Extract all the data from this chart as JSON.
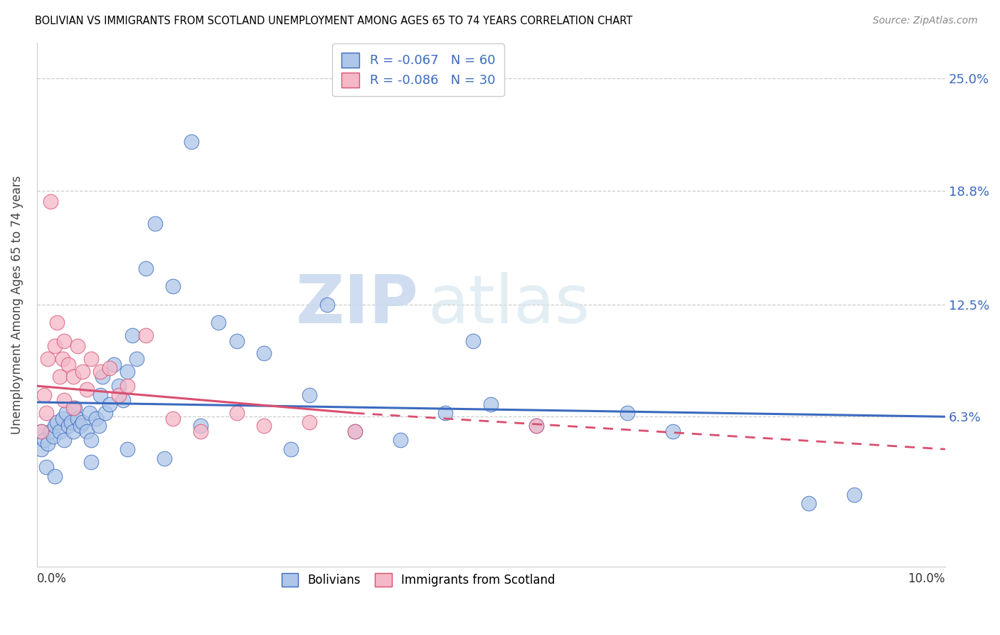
{
  "title": "BOLIVIAN VS IMMIGRANTS FROM SCOTLAND UNEMPLOYMENT AMONG AGES 65 TO 74 YEARS CORRELATION CHART",
  "source": "Source: ZipAtlas.com",
  "ylabel": "Unemployment Among Ages 65 to 74 years",
  "xlim": [
    0.0,
    10.0
  ],
  "ylim": [
    -2.0,
    27.0
  ],
  "yticks_labels": [
    "6.3%",
    "12.5%",
    "18.8%",
    "25.0%"
  ],
  "yticks_values": [
    6.3,
    12.5,
    18.8,
    25.0
  ],
  "blue_R": -0.067,
  "blue_N": 60,
  "pink_R": -0.086,
  "pink_N": 30,
  "blue_color": "#aec6e8",
  "pink_color": "#f4b8c8",
  "blue_line_color": "#3b6abf",
  "pink_line_color": "#d94f70",
  "watermark_zip": "ZIP",
  "watermark_atlas": "atlas",
  "blue_points_x": [
    0.05,
    0.05,
    0.08,
    0.12,
    0.15,
    0.18,
    0.2,
    0.22,
    0.25,
    0.28,
    0.3,
    0.32,
    0.35,
    0.38,
    0.4,
    0.42,
    0.45,
    0.48,
    0.5,
    0.55,
    0.58,
    0.6,
    0.65,
    0.68,
    0.7,
    0.72,
    0.75,
    0.8,
    0.85,
    0.9,
    0.95,
    1.0,
    1.05,
    1.1,
    1.2,
    1.3,
    1.5,
    1.7,
    2.0,
    2.2,
    2.5,
    2.8,
    3.0,
    3.5,
    4.0,
    4.5,
    4.8,
    5.0,
    5.5,
    6.5,
    7.0,
    8.5,
    9.0,
    0.1,
    0.2,
    0.6,
    1.0,
    1.4,
    1.8,
    3.2
  ],
  "blue_points_y": [
    5.5,
    4.5,
    5.0,
    4.8,
    5.5,
    5.2,
    5.8,
    6.0,
    5.5,
    6.2,
    5.0,
    6.5,
    5.8,
    6.0,
    5.5,
    6.8,
    6.2,
    5.8,
    6.0,
    5.5,
    6.5,
    5.0,
    6.2,
    5.8,
    7.5,
    8.5,
    6.5,
    7.0,
    9.2,
    8.0,
    7.2,
    8.8,
    10.8,
    9.5,
    14.5,
    17.0,
    13.5,
    21.5,
    11.5,
    10.5,
    9.8,
    4.5,
    7.5,
    5.5,
    5.0,
    6.5,
    10.5,
    7.0,
    5.8,
    6.5,
    5.5,
    1.5,
    2.0,
    3.5,
    3.0,
    3.8,
    4.5,
    4.0,
    5.8,
    12.5
  ],
  "pink_points_x": [
    0.05,
    0.08,
    0.12,
    0.15,
    0.2,
    0.22,
    0.25,
    0.28,
    0.3,
    0.35,
    0.4,
    0.45,
    0.5,
    0.55,
    0.6,
    0.7,
    0.8,
    0.9,
    1.0,
    1.2,
    1.5,
    1.8,
    2.2,
    2.5,
    3.0,
    3.5,
    5.5,
    0.1,
    0.3,
    0.4
  ],
  "pink_points_y": [
    5.5,
    7.5,
    9.5,
    18.2,
    10.2,
    11.5,
    8.5,
    9.5,
    10.5,
    9.2,
    8.5,
    10.2,
    8.8,
    7.8,
    9.5,
    8.8,
    9.0,
    7.5,
    8.0,
    10.8,
    6.2,
    5.5,
    6.5,
    5.8,
    6.0,
    5.5,
    5.8,
    6.5,
    7.2,
    6.8
  ],
  "blue_trendline_x0": 0.0,
  "blue_trendline_y0": 7.1,
  "blue_trendline_x1": 10.0,
  "blue_trendline_y1": 6.3,
  "pink_solid_x0": 0.0,
  "pink_solid_y0": 8.0,
  "pink_solid_x1": 3.5,
  "pink_solid_y1": 6.5,
  "pink_dash_x0": 3.5,
  "pink_dash_y0": 6.5,
  "pink_dash_x1": 10.0,
  "pink_dash_y1": 4.5
}
